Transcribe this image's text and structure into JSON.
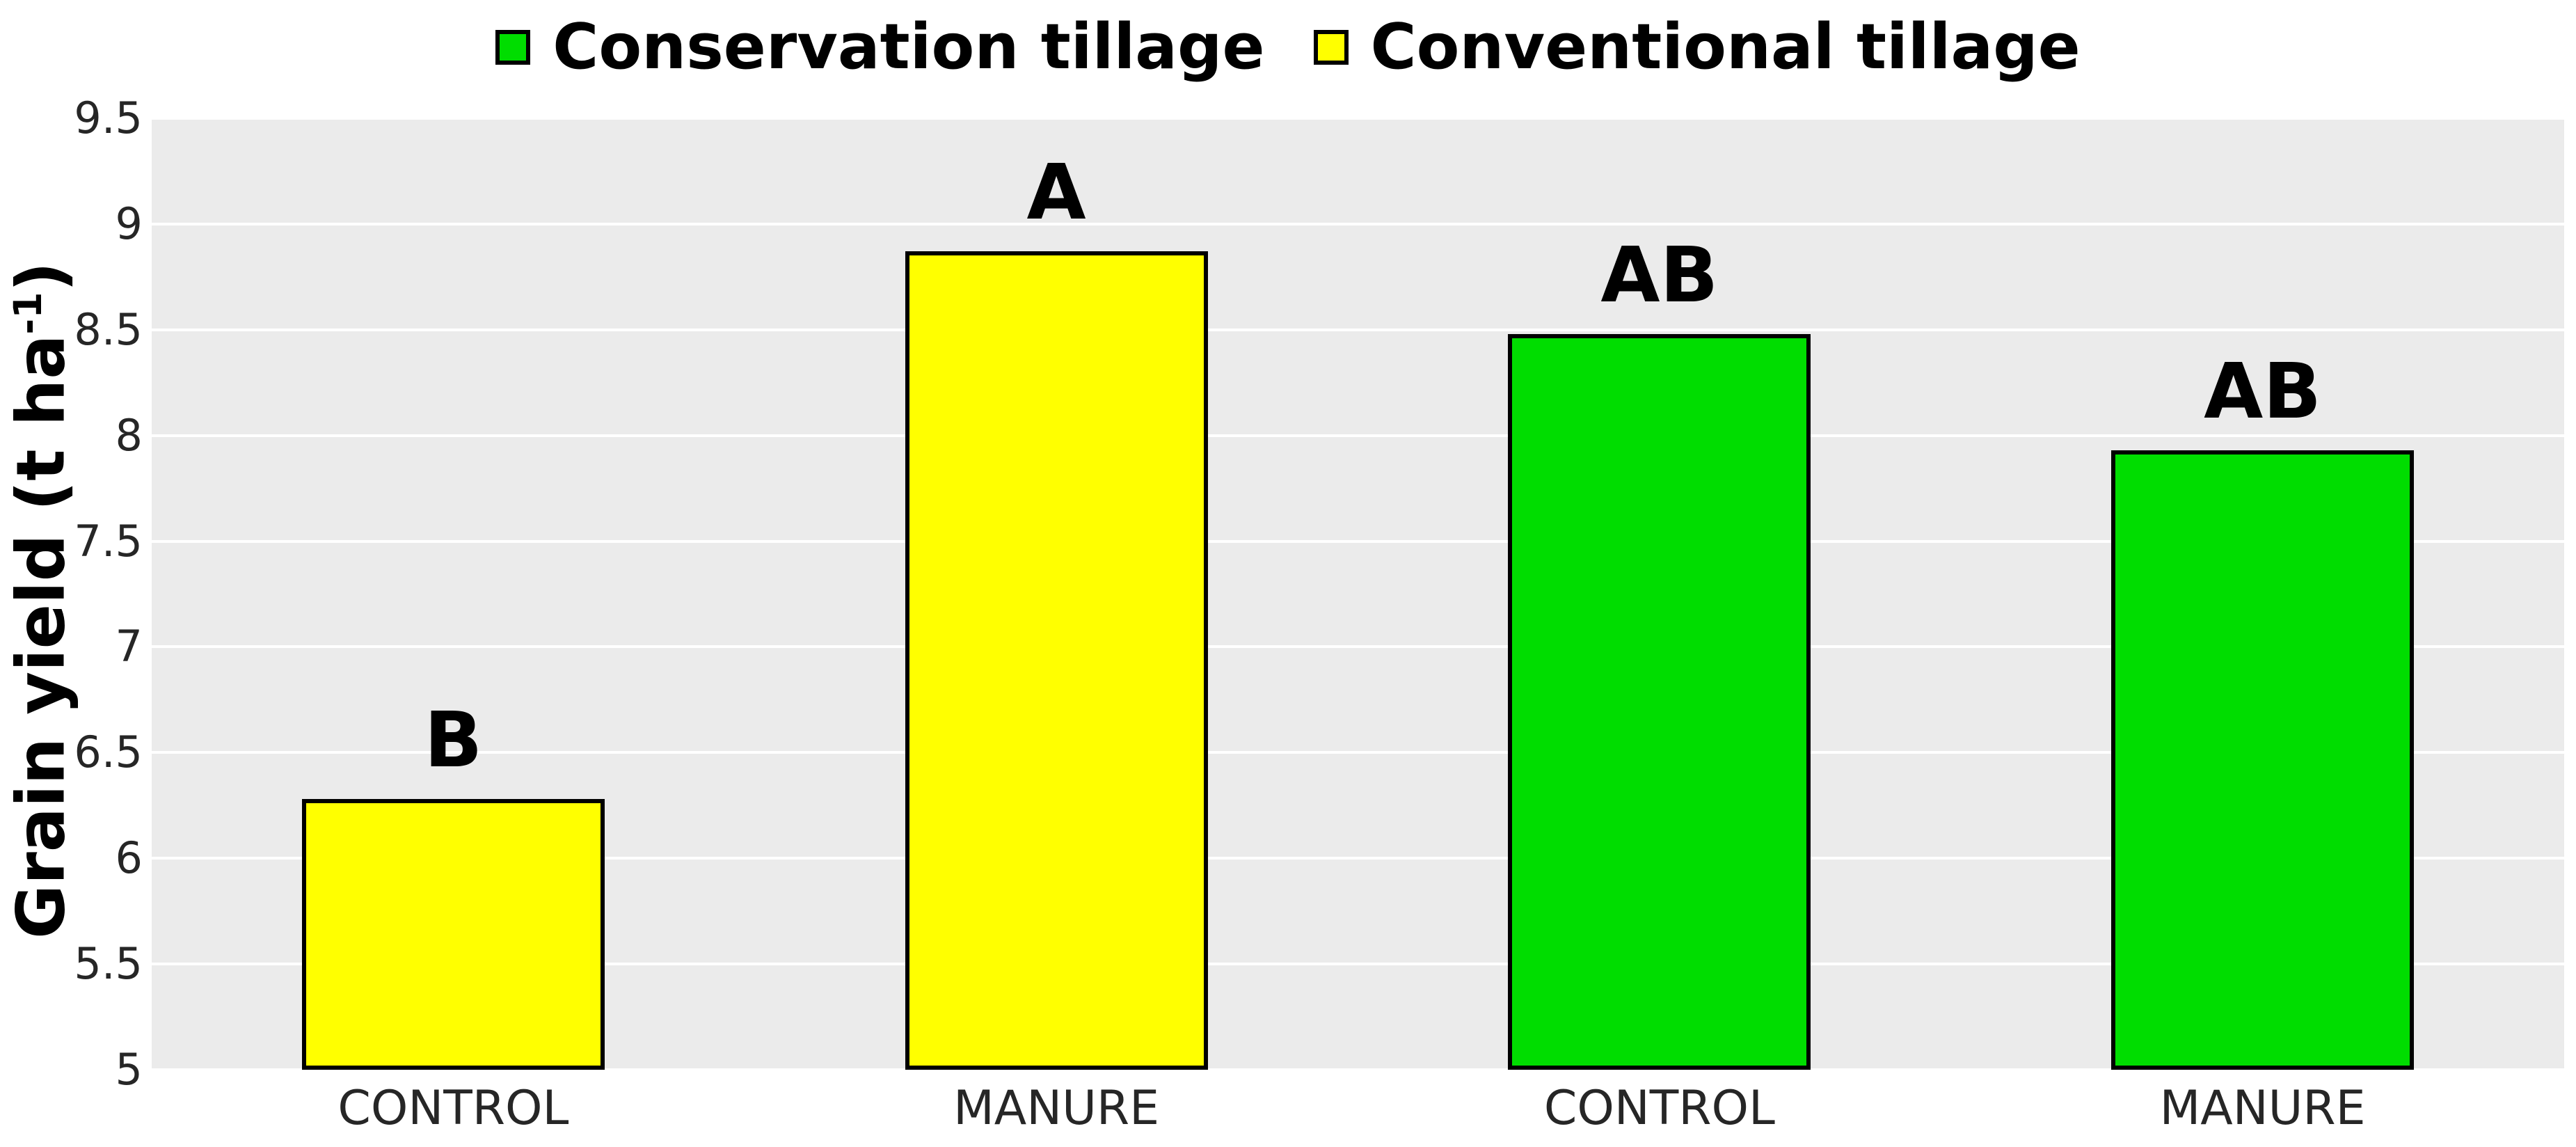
{
  "chart_data": {
    "type": "bar",
    "title": "",
    "xlabel": "",
    "ylabel": "Grain yield (t ha⁻¹)",
    "ylabel_parts": {
      "prefix": "Grain yield (t ha",
      "sup": "-1",
      "suffix": ")"
    },
    "ylim": [
      5,
      9.5
    ],
    "yticks": [
      5,
      5.5,
      6,
      6.5,
      7,
      7.5,
      8,
      8.5,
      9,
      9.5
    ],
    "grid": true,
    "legend_position": "top",
    "categories": [
      "CONTROL",
      "MANURE",
      "CONTROL",
      "MANURE"
    ],
    "bars": [
      {
        "category": "CONTROL",
        "series": "Conventional tillage",
        "value": 6.28,
        "sig_letter": "B",
        "color": "#FFFF00"
      },
      {
        "category": "MANURE",
        "series": "Conventional tillage",
        "value": 8.87,
        "sig_letter": "A",
        "color": "#FFFF00"
      },
      {
        "category": "CONTROL",
        "series": "Conservation tillage",
        "value": 8.48,
        "sig_letter": "AB",
        "color": "#00DD00"
      },
      {
        "category": "MANURE",
        "series": "Conservation tillage",
        "value": 7.93,
        "sig_letter": "AB",
        "color": "#00DD00"
      }
    ],
    "legend": [
      {
        "label": "Conservation tillage",
        "color": "#00DD00"
      },
      {
        "label": "Conventional tillage",
        "color": "#FFFF00"
      }
    ],
    "colors": {
      "panel_bg": "#EBEBEB",
      "grid_color": "#FFFFFF",
      "bar_border": "#000000",
      "axis_text": "#262626",
      "text": "#000000",
      "figure_bg": "#FFFFFF"
    }
  }
}
